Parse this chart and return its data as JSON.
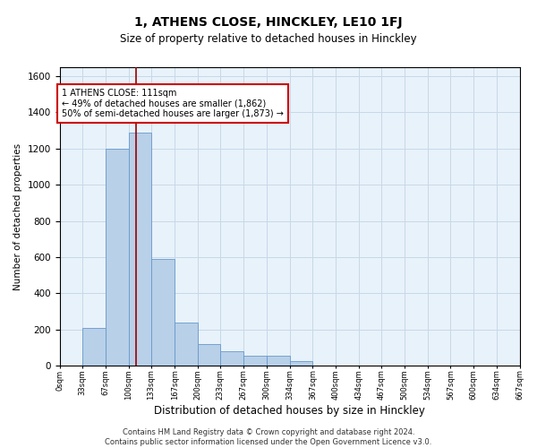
{
  "title": "1, ATHENS CLOSE, HINCKLEY, LE10 1FJ",
  "subtitle": "Size of property relative to detached houses in Hinckley",
  "xlabel": "Distribution of detached houses by size in Hinckley",
  "ylabel": "Number of detached properties",
  "footer_line1": "Contains HM Land Registry data © Crown copyright and database right 2024.",
  "footer_line2": "Contains public sector information licensed under the Open Government Licence v3.0.",
  "bar_color": "#b8d0e8",
  "bar_edge_color": "#6699cc",
  "grid_color": "#c8d8e8",
  "background_color": "#e8f2fa",
  "vline_value": 111,
  "vline_color": "#990000",
  "annotation_text": "1 ATHENS CLOSE: 111sqm\n← 49% of detached houses are smaller (1,862)\n50% of semi-detached houses are larger (1,873) →",
  "annotation_box_color": "#ffffff",
  "annotation_box_edge": "#cc0000",
  "bin_edges": [
    0,
    33,
    67,
    100,
    133,
    167,
    200,
    233,
    267,
    300,
    334,
    367,
    400,
    434,
    467,
    500,
    534,
    567,
    600,
    634,
    667
  ],
  "bin_counts": [
    0,
    207,
    1197,
    1290,
    590,
    240,
    120,
    80,
    55,
    55,
    28,
    0,
    0,
    0,
    0,
    0,
    0,
    0,
    0,
    0
  ],
  "ylim": [
    0,
    1650
  ],
  "yticks": [
    0,
    200,
    400,
    600,
    800,
    1000,
    1200,
    1400,
    1600
  ],
  "xtick_labels": [
    "0sqm",
    "33sqm",
    "67sqm",
    "100sqm",
    "133sqm",
    "167sqm",
    "200sqm",
    "233sqm",
    "267sqm",
    "300sqm",
    "334sqm",
    "367sqm",
    "400sqm",
    "434sqm",
    "467sqm",
    "500sqm",
    "534sqm",
    "567sqm",
    "600sqm",
    "634sqm",
    "667sqm"
  ]
}
